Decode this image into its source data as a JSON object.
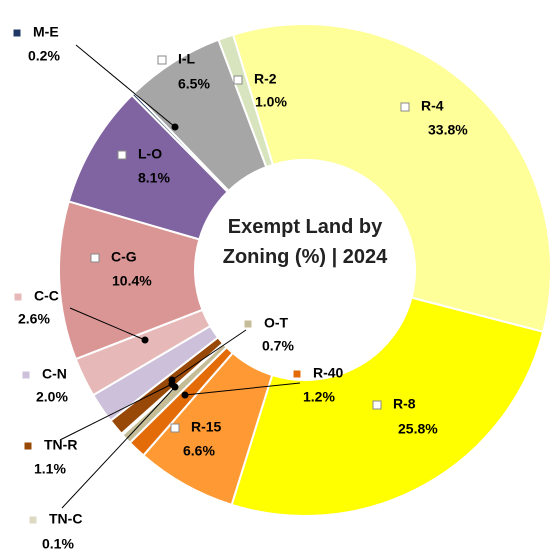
{
  "chart_data": {
    "type": "donut",
    "title": "Exempt Land by Zoning (%) | 2024",
    "categories": [
      "R-4",
      "R-8",
      "R-15",
      "R-40",
      "O-T",
      "TN-C",
      "TN-R",
      "C-N",
      "C-C",
      "C-G",
      "L-O",
      "M-E",
      "I-L",
      "R-2"
    ],
    "values": [
      33.8,
      25.8,
      6.6,
      1.2,
      0.7,
      0.1,
      1.1,
      2.0,
      2.6,
      10.4,
      8.1,
      0.2,
      6.5,
      1.0
    ],
    "value_labels": [
      "33.8%",
      "25.8%",
      "6.6%",
      "1.2%",
      "0.7%",
      "0.1%",
      "1.1%",
      "2.0%",
      "2.6%",
      "10.4%",
      "8.1%",
      "0.2%",
      "6.5%",
      "1.0%"
    ],
    "colors": [
      "#FFFF99",
      "#FFFF00",
      "#FF9933",
      "#E36C09",
      "#C4BD97",
      "#DDD9C3",
      "#984807",
      "#CCC0DA",
      "#E6B9B8",
      "#D99694",
      "#8064A2",
      "#1F3864",
      "#A6A6A6",
      "#D7E4BD"
    ]
  }
}
